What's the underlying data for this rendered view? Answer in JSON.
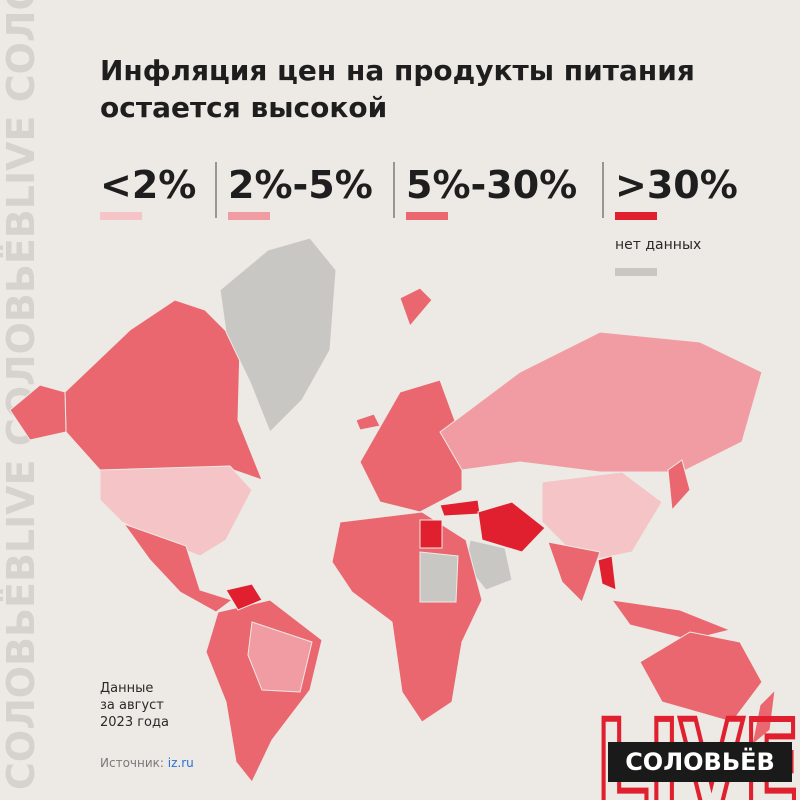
{
  "header": {
    "title_lines": [
      "Инфляция цен на продукты питания",
      "остается высокой"
    ]
  },
  "legend": {
    "items": [
      {
        "label": "<2%",
        "color": "#f4c4c6"
      },
      {
        "label": "2%-5%",
        "color": "#f09ca2"
      },
      {
        "label": "5%-30%",
        "color": "#ea6770"
      },
      {
        "label": ">30%",
        "color": "#e0202e"
      }
    ],
    "no_data": {
      "label": "нет данных",
      "color": "#c9c7c4"
    }
  },
  "note_lines": [
    "Данные",
    "за август",
    "2023 года"
  ],
  "source": {
    "label": "Источник:",
    "link": "iz.ru"
  },
  "watermark": "СОЛОВЬЁВLIVE СОЛОВЬЁВLIVE СОЛОВЬЁВLIVE",
  "logo": {
    "big": "LIVE",
    "small": "СОЛОВЬЁВ"
  }
}
